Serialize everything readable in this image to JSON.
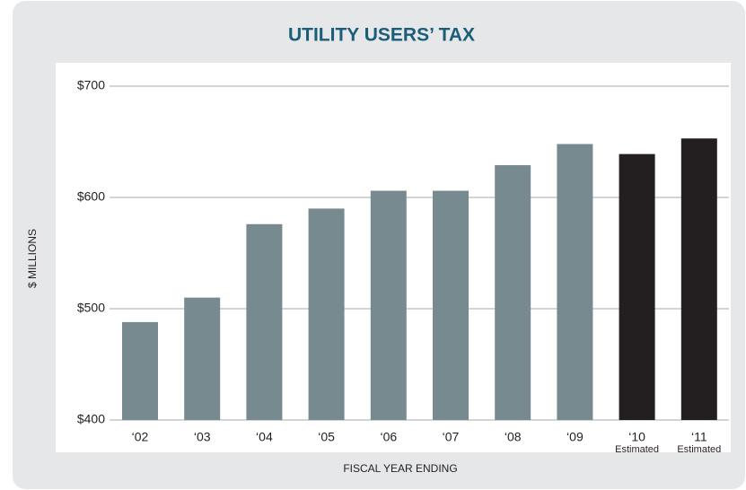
{
  "chart_data": {
    "type": "bar",
    "title": "UTILITY USERS’ TAX",
    "categories": [
      "‘02",
      "‘03",
      "‘04",
      "‘05",
      "‘06",
      "‘07",
      "‘08",
      "‘09",
      "‘10",
      "‘11"
    ],
    "sublabels": [
      null,
      null,
      null,
      null,
      null,
      null,
      null,
      null,
      "Estimated",
      "Estimated"
    ],
    "values": [
      488,
      510,
      576,
      590,
      606,
      606,
      629,
      648,
      639,
      653
    ],
    "colors": [
      "#778a90",
      "#778a90",
      "#778a90",
      "#778a90",
      "#778a90",
      "#778a90",
      "#778a90",
      "#778a90",
      "#231f20",
      "#231f20"
    ],
    "ylim": [
      400,
      700
    ],
    "yticks": [
      {
        "value": 400,
        "label": "$400"
      },
      {
        "value": 500,
        "label": "$500"
      },
      {
        "value": 600,
        "label": "$600"
      },
      {
        "value": 700,
        "label": "$700"
      }
    ],
    "ylabel": "$ MILLIONS",
    "xlabel": "FISCAL YEAR ENDING",
    "grid": true
  }
}
